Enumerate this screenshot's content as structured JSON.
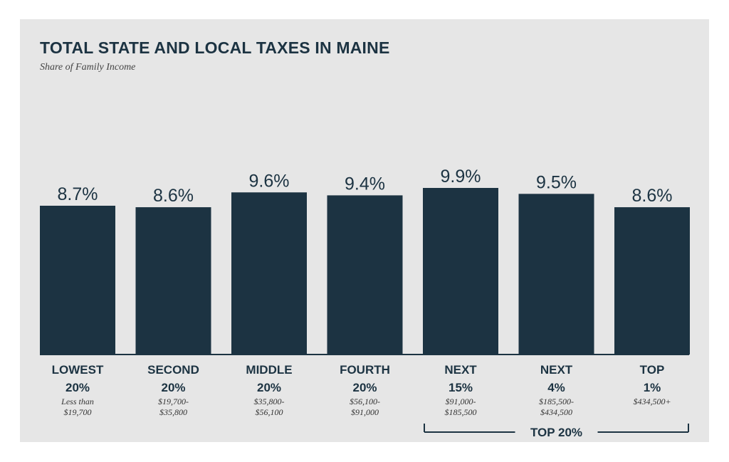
{
  "colors": {
    "bar": "#1c3342",
    "panel": "#e6e6e6",
    "text": "#1c3342"
  },
  "chart_data": {
    "type": "bar",
    "title": "TOTAL STATE AND LOCAL TAXES IN MAINE",
    "subtitle": "Share of Family Income",
    "categories": [
      {
        "group": "LOWEST",
        "pct": "20%",
        "range": [
          "Less than",
          "$19,700"
        ]
      },
      {
        "group": "SECOND",
        "pct": "20%",
        "range": [
          "$19,700-",
          "$35,800"
        ]
      },
      {
        "group": "MIDDLE",
        "pct": "20%",
        "range": [
          "$35,800-",
          "$56,100"
        ]
      },
      {
        "group": "FOURTH",
        "pct": "20%",
        "range": [
          "$56,100-",
          "$91,000"
        ]
      },
      {
        "group": "NEXT",
        "pct": "15%",
        "range": [
          "$91,000-",
          "$185,500"
        ]
      },
      {
        "group": "NEXT",
        "pct": "4%",
        "range": [
          "$185,500-",
          "$434,500"
        ]
      },
      {
        "group": "TOP",
        "pct": "1%",
        "range": [
          "$434,500+"
        ]
      }
    ],
    "values": [
      8.7,
      8.6,
      9.6,
      9.4,
      9.9,
      9.5,
      8.6
    ],
    "value_labels": [
      "8.7%",
      "8.6%",
      "9.6%",
      "9.4%",
      "9.9%",
      "9.5%",
      "8.6%"
    ],
    "bracket_label": "TOP 20%",
    "bracket_span": [
      4,
      6
    ]
  }
}
